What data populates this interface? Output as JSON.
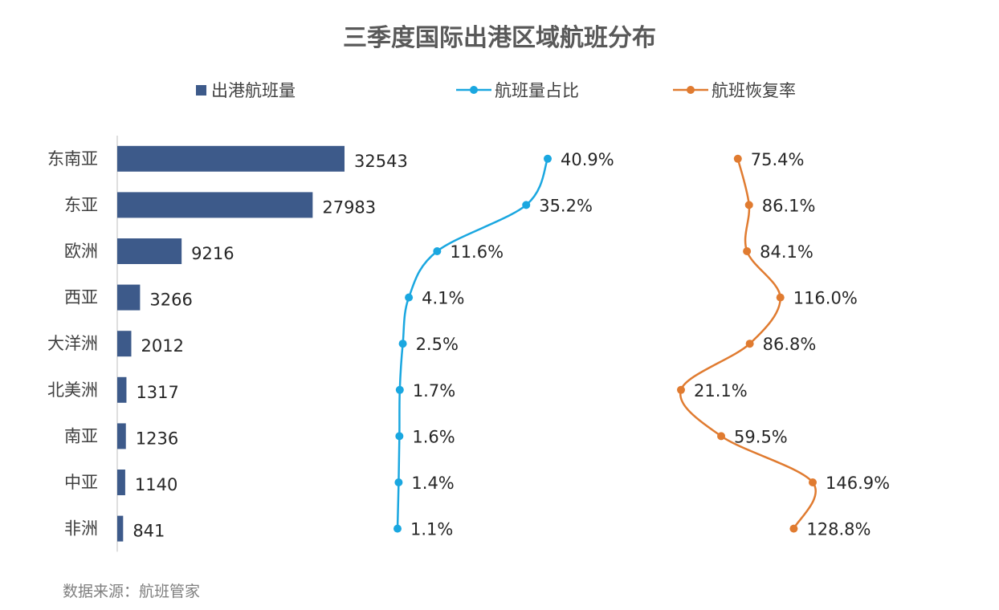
{
  "title": "三季度国际出港区域航班分布",
  "source": "数据来源：航班管家",
  "colors": {
    "bar": "#3d5a8a",
    "share": "#1aa7e0",
    "recovery": "#e07b30",
    "axis": "#bfbfbf"
  },
  "chart_data": {
    "type": "bar",
    "orientation": "horizontal",
    "categories": [
      "东南亚",
      "东亚",
      "欧洲",
      "西亚",
      "大洋洲",
      "北美洲",
      "南亚",
      "中亚",
      "非洲"
    ],
    "series": [
      {
        "name": "出港航班量",
        "type": "bar",
        "values": [
          32543,
          27983,
          9216,
          3266,
          2012,
          1317,
          1236,
          1140,
          841
        ]
      },
      {
        "name": "航班量占比",
        "type": "line",
        "values": [
          40.9,
          35.2,
          11.6,
          4.1,
          2.5,
          1.7,
          1.6,
          1.4,
          1.1
        ],
        "labels": [
          "40.9%",
          "35.2%",
          "11.6%",
          "4.1%",
          "2.5%",
          "1.7%",
          "1.6%",
          "1.4%",
          "1.1%"
        ]
      },
      {
        "name": "航班恢复率",
        "type": "line",
        "values": [
          75.4,
          86.1,
          84.1,
          116.0,
          86.8,
          21.1,
          59.5,
          146.9,
          128.8
        ],
        "labels": [
          "75.4%",
          "86.1%",
          "84.1%",
          "116.0%",
          "86.8%",
          "21.1%",
          "59.5%",
          "146.9%",
          "128.8%"
        ]
      }
    ],
    "bar_labels": [
      "32543",
      "27983",
      "9216",
      "3266",
      "2012",
      "1317",
      "1236",
      "1140",
      "841"
    ],
    "legend_position": "top",
    "grid": false
  }
}
